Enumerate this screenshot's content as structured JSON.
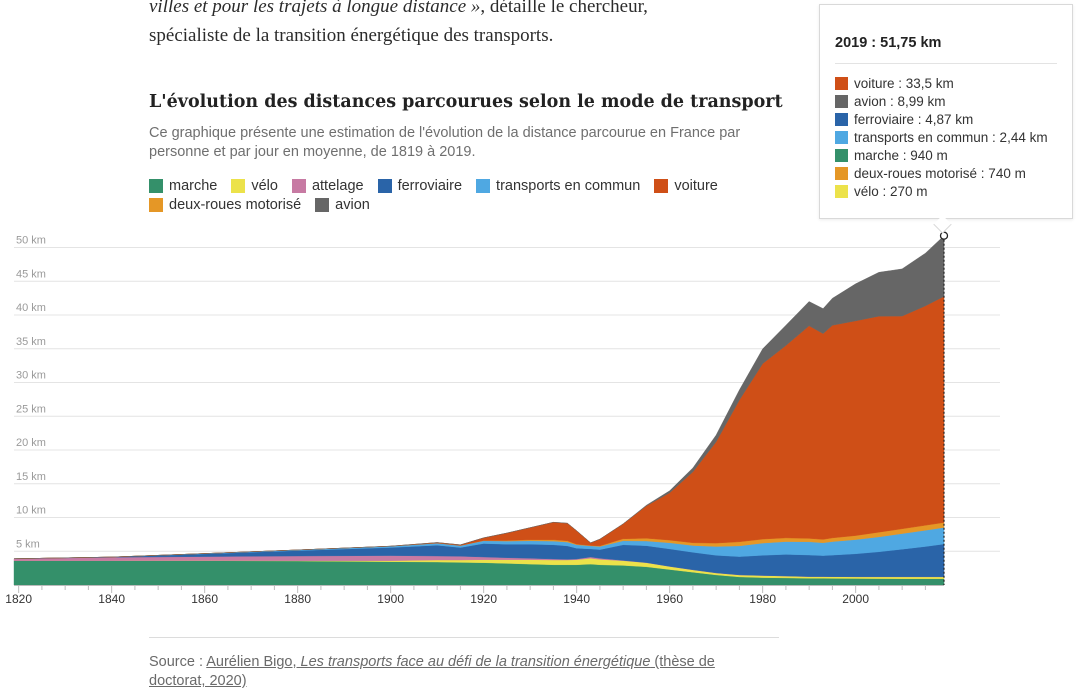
{
  "article": {
    "line1_quote": "villes et pour les trajets à longue distance »",
    "line1_rest": ", détaille le chercheur,",
    "line2": "spécialiste de la transition énergétique des transports."
  },
  "source": {
    "prefix": "Source : ",
    "author": "Aurélien Bigo, ",
    "title": "Les transports face au défi de la transition énergétique",
    "suffix": " (thèse de doctorat, 2020)"
  },
  "tooltip": {
    "title": "2019 : 51,75 km",
    "rows": [
      {
        "label": "voiture : 33,5 km",
        "color": "#cf4f17"
      },
      {
        "label": "avion : 8,99 km",
        "color": "#666666"
      },
      {
        "label": "ferroviaire : 4,87 km",
        "color": "#2a64a8"
      },
      {
        "label": "transports en commun : 2,44 km",
        "color": "#4fa8e2"
      },
      {
        "label": "marche : 940 m",
        "color": "#34906a"
      },
      {
        "label": "deux-roues motorisé : 740 m",
        "color": "#e59726"
      },
      {
        "label": "vélo : 270 m",
        "color": "#ece24a"
      }
    ]
  },
  "chart_data": {
    "type": "area",
    "stacked": true,
    "title": "L'évolution des distances parcourues selon le mode de transport",
    "subtitle": "Ce graphique présente une estimation de l'évolution de la distance parcourue en France par personne et par jour en moyenne, de 1819 à 2019.",
    "legend": [
      {
        "name": "marche",
        "color": "#34906a"
      },
      {
        "name": "vélo",
        "color": "#ece24a"
      },
      {
        "name": "attelage",
        "color": "#c77aa3"
      },
      {
        "name": "ferroviaire",
        "color": "#2a64a8"
      },
      {
        "name": "transports en commun",
        "color": "#4fa8e2"
      },
      {
        "name": "voiture",
        "color": "#cf4f17"
      },
      {
        "name": "deux-roues motorisé",
        "color": "#e59726"
      },
      {
        "name": "avion",
        "color": "#666666"
      }
    ],
    "xlim": [
      1819,
      2019
    ],
    "ylim": [
      0,
      52
    ],
    "x_ticks": [
      1820,
      1840,
      1860,
      1880,
      1900,
      1920,
      1940,
      1960,
      1980,
      2000
    ],
    "y_ticks": [
      {
        "v": 5,
        "label": "5 km"
      },
      {
        "v": 10,
        "label": "10 km"
      },
      {
        "v": 15,
        "label": "15 km"
      },
      {
        "v": 20,
        "label": "20 km"
      },
      {
        "v": 25,
        "label": "25 km"
      },
      {
        "v": 30,
        "label": "30 km"
      },
      {
        "v": 35,
        "label": "35 km"
      },
      {
        "v": 40,
        "label": "40 km"
      },
      {
        "v": 45,
        "label": "45 km"
      },
      {
        "v": 50,
        "label": "50 km"
      }
    ],
    "x": [
      1819,
      1840,
      1860,
      1880,
      1900,
      1910,
      1915,
      1920,
      1925,
      1930,
      1935,
      1938,
      1940,
      1943,
      1945,
      1950,
      1955,
      1960,
      1965,
      1970,
      1975,
      1980,
      1985,
      1990,
      1993,
      1995,
      2000,
      2005,
      2010,
      2015,
      2019
    ],
    "series": [
      {
        "name": "marche",
        "values": [
          3.6,
          3.6,
          3.6,
          3.55,
          3.45,
          3.4,
          3.35,
          3.3,
          3.2,
          3.1,
          3.0,
          3.0,
          3.0,
          3.1,
          3.0,
          2.9,
          2.7,
          2.3,
          1.9,
          1.5,
          1.2,
          1.1,
          1.05,
          1.0,
          1.0,
          0.98,
          0.96,
          0.95,
          0.94,
          0.94,
          0.94
        ]
      },
      {
        "name": "vélo",
        "values": [
          0,
          0,
          0.01,
          0.05,
          0.15,
          0.3,
          0.35,
          0.45,
          0.55,
          0.65,
          0.7,
          0.7,
          0.75,
          0.85,
          0.8,
          0.7,
          0.6,
          0.45,
          0.35,
          0.3,
          0.3,
          0.3,
          0.28,
          0.25,
          0.25,
          0.25,
          0.26,
          0.27,
          0.27,
          0.27,
          0.27
        ]
      },
      {
        "name": "attelage",
        "values": [
          0.3,
          0.5,
          0.6,
          0.7,
          0.75,
          0.6,
          0.55,
          0.4,
          0.3,
          0.2,
          0.15,
          0.1,
          0.1,
          0.2,
          0.15,
          0.05,
          0.02,
          0,
          0,
          0,
          0,
          0,
          0,
          0,
          0,
          0,
          0,
          0,
          0,
          0,
          0
        ]
      },
      {
        "name": "ferroviaire",
        "values": [
          0,
          0.05,
          0.4,
          0.8,
          1.2,
          1.6,
          1.3,
          2.0,
          2.0,
          2.1,
          2.1,
          2.0,
          1.6,
          1.2,
          1.3,
          2.3,
          2.5,
          2.6,
          2.6,
          2.6,
          2.7,
          3.0,
          3.2,
          3.2,
          3.1,
          3.2,
          3.4,
          3.7,
          4.1,
          4.5,
          4.87
        ]
      },
      {
        "name": "transports en commun",
        "values": [
          0,
          0,
          0.05,
          0.1,
          0.2,
          0.3,
          0.3,
          0.4,
          0.45,
          0.5,
          0.55,
          0.55,
          0.5,
          0.45,
          0.45,
          0.6,
          0.7,
          0.9,
          1.0,
          1.3,
          1.6,
          1.8,
          1.9,
          1.95,
          1.9,
          2.0,
          2.1,
          2.2,
          2.3,
          2.4,
          2.44
        ]
      },
      {
        "name": "deux-roues motorisé",
        "values": [
          0,
          0,
          0,
          0,
          0,
          0,
          0,
          0.05,
          0.1,
          0.15,
          0.2,
          0.2,
          0.1,
          0.05,
          0.1,
          0.3,
          0.4,
          0.4,
          0.4,
          0.5,
          0.6,
          0.6,
          0.55,
          0.5,
          0.5,
          0.55,
          0.6,
          0.7,
          0.72,
          0.74,
          0.74
        ]
      },
      {
        "name": "voiture",
        "values": [
          0,
          0,
          0,
          0,
          0.02,
          0.1,
          0.1,
          0.4,
          1.1,
          1.8,
          2.6,
          2.6,
          2.0,
          0.4,
          1.0,
          2.2,
          4.8,
          7.0,
          10.5,
          15.0,
          21.0,
          26.0,
          28.5,
          31.5,
          30.5,
          31.5,
          31.8,
          32.0,
          31.5,
          32.5,
          33.5
        ]
      },
      {
        "name": "avion",
        "values": [
          0,
          0,
          0,
          0,
          0,
          0,
          0,
          0,
          0,
          0,
          0,
          0,
          0,
          0,
          0,
          0,
          0.1,
          0.3,
          0.6,
          1.0,
          1.5,
          2.2,
          3.0,
          3.6,
          3.7,
          4.0,
          5.5,
          6.5,
          7.0,
          7.8,
          8.99
        ]
      }
    ]
  }
}
